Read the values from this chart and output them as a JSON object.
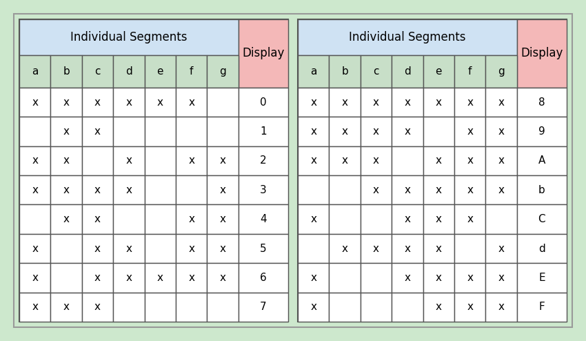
{
  "left_table": {
    "header_title": "Individual Segments",
    "display_label": "Display",
    "col_headers": [
      "a",
      "b",
      "c",
      "d",
      "e",
      "f",
      "g"
    ],
    "rows": [
      {
        "segments": [
          "x",
          "x",
          "x",
          "x",
          "x",
          "x",
          ""
        ],
        "display": "0"
      },
      {
        "segments": [
          "",
          "x",
          "x",
          "",
          "",
          "",
          ""
        ],
        "display": "1"
      },
      {
        "segments": [
          "x",
          "x",
          "",
          "x",
          "",
          "x",
          "x"
        ],
        "display": "2"
      },
      {
        "segments": [
          "x",
          "x",
          "x",
          "x",
          "",
          "",
          "x"
        ],
        "display": "3"
      },
      {
        "segments": [
          "",
          "x",
          "x",
          "",
          "",
          "x",
          "x"
        ],
        "display": "4"
      },
      {
        "segments": [
          "x",
          "",
          "x",
          "x",
          "",
          "x",
          "x"
        ],
        "display": "5"
      },
      {
        "segments": [
          "x",
          "",
          "x",
          "x",
          "x",
          "x",
          "x"
        ],
        "display": "6"
      },
      {
        "segments": [
          "x",
          "x",
          "x",
          "",
          "",
          "",
          ""
        ],
        "display": "7"
      }
    ]
  },
  "right_table": {
    "header_title": "Individual Segments",
    "display_label": "Display",
    "col_headers": [
      "a",
      "b",
      "c",
      "d",
      "e",
      "f",
      "g"
    ],
    "rows": [
      {
        "segments": [
          "x",
          "x",
          "x",
          "x",
          "x",
          "x",
          "x"
        ],
        "display": "8"
      },
      {
        "segments": [
          "x",
          "x",
          "x",
          "x",
          "",
          "x",
          "x"
        ],
        "display": "9"
      },
      {
        "segments": [
          "x",
          "x",
          "x",
          "",
          "x",
          "x",
          "x"
        ],
        "display": "A"
      },
      {
        "segments": [
          "",
          "",
          "x",
          "x",
          "x",
          "x",
          "x"
        ],
        "display": "b"
      },
      {
        "segments": [
          "x",
          "",
          "",
          "x",
          "x",
          "x",
          ""
        ],
        "display": "C"
      },
      {
        "segments": [
          "",
          "x",
          "x",
          "x",
          "x",
          "",
          "x"
        ],
        "display": "d"
      },
      {
        "segments": [
          "x",
          "",
          "",
          "x",
          "x",
          "x",
          "x"
        ],
        "display": "E"
      },
      {
        "segments": [
          "x",
          "",
          "",
          "",
          "x",
          "x",
          "x"
        ],
        "display": "F"
      }
    ]
  },
  "colors": {
    "outer_bg": "#cde8cd",
    "inner_bg": "#ffffff",
    "header_blue": "#cfe2f3",
    "header_green": "#c8dfc8",
    "header_pink": "#f4b8b8",
    "border": "#555555",
    "text": "#000000"
  },
  "font_size": 11,
  "header_font_size": 12,
  "fig_width": 8.5,
  "fig_height": 4.94,
  "dpi": 100
}
